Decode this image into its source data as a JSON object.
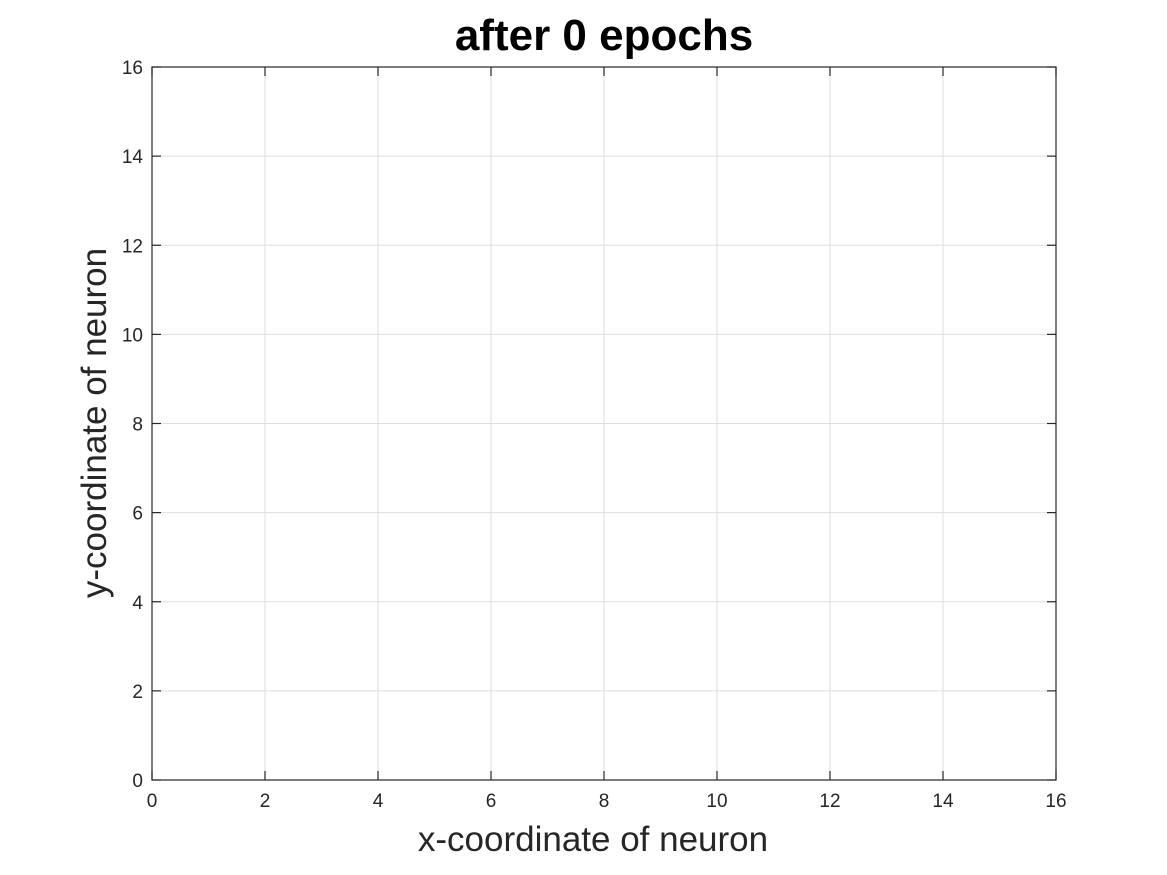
{
  "chart_data": {
    "type": "scatter",
    "title": "after 0 epochs",
    "xlabel": "x-coordinate of neuron",
    "ylabel": "y-coordinate of neuron",
    "xlim": [
      0,
      16
    ],
    "ylim": [
      0,
      16
    ],
    "xticks": [
      0,
      2,
      4,
      6,
      8,
      10,
      12,
      14,
      16
    ],
    "yticks": [
      0,
      2,
      4,
      6,
      8,
      10,
      12,
      14,
      16
    ],
    "grid": true,
    "series": []
  }
}
